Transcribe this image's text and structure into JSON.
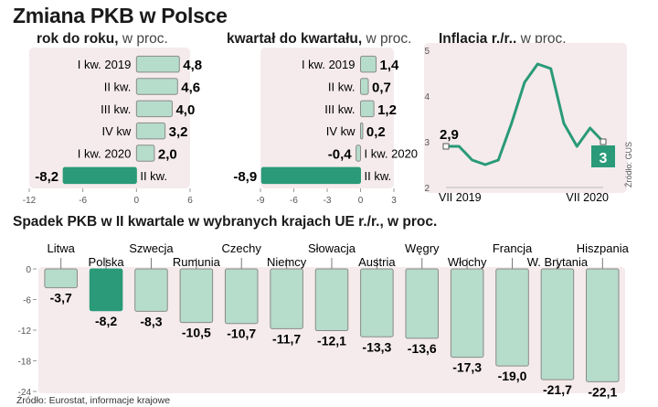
{
  "title": "Zmiana PKB w Polsce",
  "bottom_title": "Spadek PKB w II kwartale w wybranych krajach UE r./r., w proc.",
  "source_bottom": "Źródło: Eurostat, informacje krajowe",
  "source_side": "Źródło: GUS",
  "colors": {
    "panel_bg": "#f5ebec",
    "bar_light": "#b6dccb",
    "bar_dark": "#2a9a78",
    "line": "#2a9a78",
    "bar_stroke": "#8a8a8a"
  },
  "chart_data": [
    {
      "type": "bar",
      "orientation": "horizontal",
      "title_bold": "rok do roku,",
      "title_light": "w proc.",
      "categories": [
        "I kw. 2019",
        "II kw.",
        "III kw.",
        "IV kw",
        "I kw. 2020",
        "II kw."
      ],
      "values": [
        4.8,
        4.6,
        4.0,
        3.2,
        2.0,
        -8.2
      ],
      "value_labels": [
        "4,8",
        "4,6",
        "4,0",
        "3,2",
        "2,0",
        "-8,2"
      ],
      "highlight_index": 5,
      "xlim": [
        -12,
        6
      ],
      "ticks": [
        -12,
        -6,
        0,
        6
      ],
      "tick_labels": [
        "-12",
        "-6",
        "0",
        "6"
      ]
    },
    {
      "type": "bar",
      "orientation": "horizontal",
      "title_bold": "kwartał do kwartału,",
      "title_light": "w proc.",
      "categories": [
        "I kw. 2019",
        "II kw.",
        "III kw.",
        "IV kw",
        "I kw. 2020",
        "II kw."
      ],
      "values": [
        1.4,
        0.7,
        1.2,
        0.2,
        -0.4,
        -8.9
      ],
      "value_labels": [
        "1,4",
        "0,7",
        "1,2",
        "0,2",
        "-0,4",
        "-8,9"
      ],
      "highlight_index": 5,
      "xlim": [
        -9,
        3
      ],
      "ticks": [
        -9,
        -6,
        -3,
        0,
        3
      ],
      "tick_labels": [
        "-9",
        "-6",
        "-3",
        "0",
        "3"
      ]
    },
    {
      "type": "line",
      "title_bold": "Inflacja r./r.,",
      "title_light": "w proc.",
      "x_labels": [
        "VII 2019",
        "VII 2020"
      ],
      "values": [
        2.9,
        2.9,
        2.6,
        2.5,
        2.6,
        3.4,
        4.3,
        4.7,
        4.6,
        3.4,
        2.9,
        3.3,
        3.0
      ],
      "start_label": "2,9",
      "end_label": "3",
      "ylim": [
        2,
        5
      ],
      "y_ticks": [
        2,
        3,
        4,
        5
      ],
      "y_tick_labels": [
        "2",
        "3",
        "4",
        "5"
      ]
    },
    {
      "type": "bar",
      "orientation": "vertical",
      "categories": [
        "Litwa",
        "Polska",
        "Szwecja",
        "Rumunia",
        "Czechy",
        "Niemcy",
        "Słowacja",
        "Austria",
        "Węgry",
        "Włochy",
        "Francja",
        "W. Brytania",
        "Hiszpania"
      ],
      "values": [
        -3.7,
        -8.2,
        -8.3,
        -10.5,
        -10.7,
        -11.7,
        -12.1,
        -13.3,
        -13.6,
        -17.3,
        -19.0,
        -21.7,
        -22.1
      ],
      "value_labels": [
        "-3,7",
        "-8,2",
        "-8,3",
        "-10,5",
        "-10,7",
        "-11,7",
        "-12,1",
        "-13,3",
        "-13,6",
        "-17,3",
        "-19,0",
        "-21,7",
        "-22,1"
      ],
      "highlight_index": 1,
      "ylim": [
        -24,
        0
      ],
      "y_ticks": [
        0,
        -6,
        -12,
        -18,
        -24
      ],
      "y_tick_labels": [
        "0",
        "-6",
        "-12",
        "-18",
        "-24"
      ]
    }
  ]
}
